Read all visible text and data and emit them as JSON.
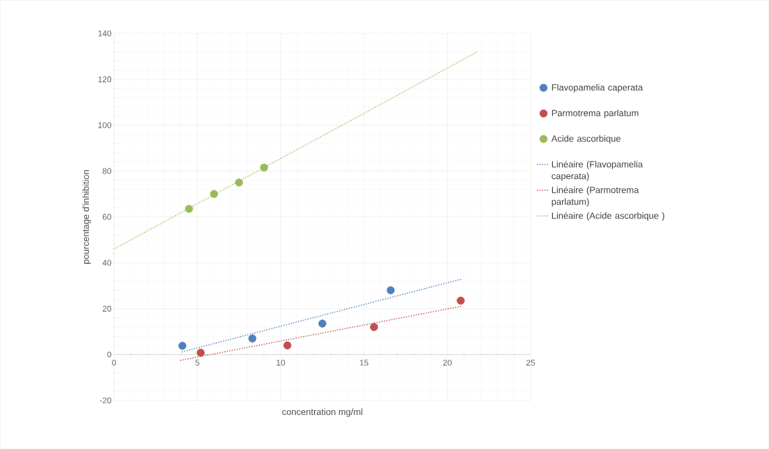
{
  "chart_data": {
    "type": "scatter",
    "xlabel": "concentration mg/ml",
    "ylabel": "pourcentage d'inhibition",
    "xlim": [
      0,
      25
    ],
    "xticks": [
      0,
      5,
      10,
      15,
      20,
      25
    ],
    "ylim": [
      -20,
      140
    ],
    "yticks": [
      -20,
      0,
      20,
      40,
      60,
      80,
      100,
      120,
      140
    ],
    "grid": true,
    "legend": "right",
    "series": [
      {
        "name": "Flavopamelia caperata",
        "color": "#4f81bd",
        "x": [
          4.1,
          8.3,
          12.5,
          16.6
        ],
        "values": [
          3.8,
          7,
          13.5,
          28
        ]
      },
      {
        "name": "Parmotrema parlatum",
        "color": "#c0504d",
        "x": [
          5.2,
          10.4,
          15.6,
          20.8
        ],
        "values": [
          0.8,
          4,
          12,
          23.5
        ]
      },
      {
        "name": "Acide ascorbique",
        "color": "#9bbb59",
        "x": [
          4.5,
          6,
          7.5,
          9
        ],
        "values": [
          63.5,
          70,
          75,
          81.5
        ]
      },
      {
        "name": "Linéaire (Flavopamelia caperata)",
        "type": "line",
        "marker": "none",
        "line_style": "dotted",
        "color": "#4f81bd",
        "x": [
          4.1,
          20.8
        ],
        "values": [
          1.2,
          32.8
        ]
      },
      {
        "name": "Linéaire (Parmotrema parlatum)",
        "type": "line",
        "marker": "none",
        "line_style": "dotted",
        "color": "#c0504d",
        "x": [
          4,
          20.8
        ],
        "values": [
          -2.5,
          21
        ]
      },
      {
        "name": "Linéaire (Acide ascorbique )",
        "type": "line",
        "marker": "none",
        "line_style": "dotted",
        "color": "#9bbb59",
        "x": [
          0,
          21.8
        ],
        "values": [
          46,
          132
        ]
      }
    ]
  }
}
